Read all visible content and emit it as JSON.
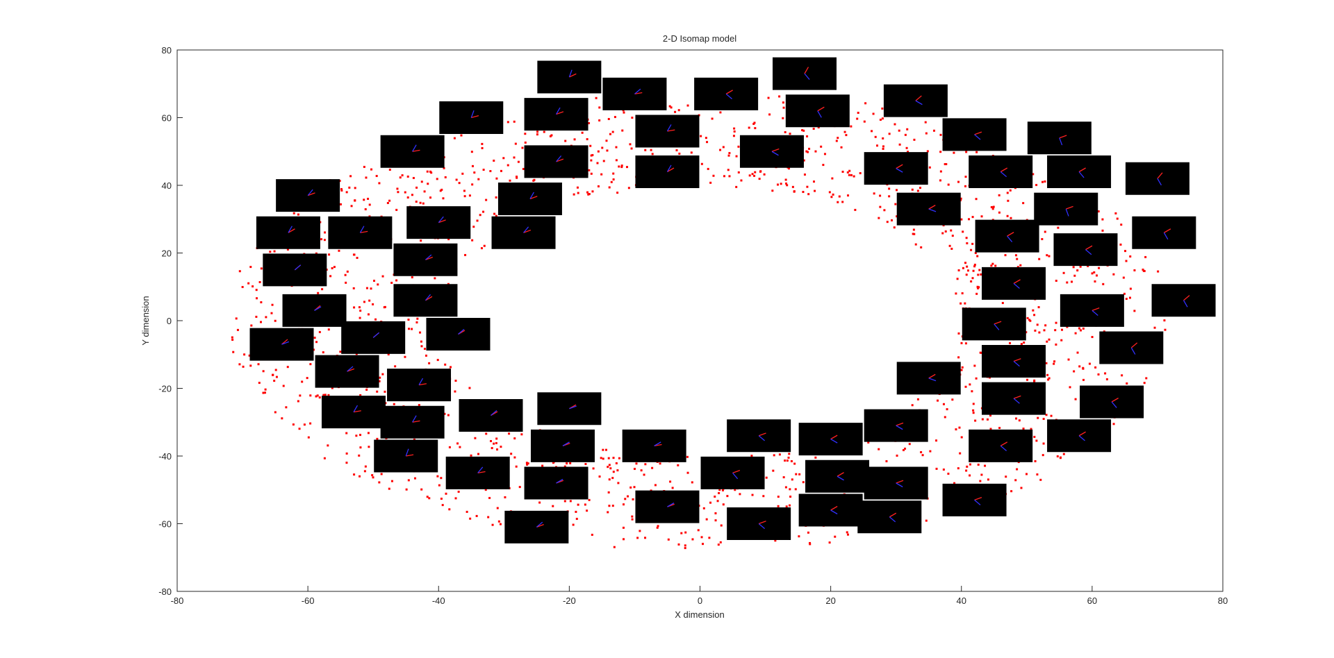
{
  "chart_data": {
    "type": "scatter",
    "title": "2-D Isomap model",
    "xlabel": "X dimension",
    "ylabel": "Y dimension",
    "xlim": [
      -80,
      80
    ],
    "ylim": [
      -80,
      80
    ],
    "xticks": [
      -80,
      -60,
      -40,
      -20,
      0,
      20,
      40,
      60,
      80
    ],
    "yticks": [
      -80,
      -60,
      -40,
      -20,
      0,
      20,
      40,
      60,
      80
    ],
    "grid": false,
    "legend": "none",
    "point_color": "#ff0000",
    "ring": {
      "center": [
        0,
        0
      ],
      "outer_radii": [
        72,
        68
      ],
      "inner_radii": [
        40,
        40
      ],
      "point_count": 1800
    },
    "thumbnails": [
      {
        "x": -20,
        "y": 72,
        "line": "-25 -70",
        "blue": "-100 10 0"
      },
      {
        "x": -10,
        "y": 67,
        "line": "-10 -40",
        "blue": "-40 20 0"
      },
      {
        "x": 4,
        "y": 67,
        "line": "-30 40",
        "blue": "-60 50 0"
      },
      {
        "x": 16,
        "y": 73,
        "line": "-60 50",
        "blue": "-80 0 40"
      },
      {
        "x": 33,
        "y": 65,
        "line": "-40 30",
        "blue": "-20 20 0"
      },
      {
        "x": -35,
        "y": 60,
        "line": "-15 -70",
        "blue": "0 90 60"
      },
      {
        "x": -22,
        "y": 61,
        "line": "-20 -60",
        "blue": "-40 30 0"
      },
      {
        "x": 18,
        "y": 62,
        "line": "-30 60",
        "blue": "-30 40 0"
      },
      {
        "x": -5,
        "y": 56,
        "line": "-10 -60",
        "blue": "-50 40 0"
      },
      {
        "x": 42,
        "y": 55,
        "line": "-20 40",
        "blue": "-40 -20 10"
      },
      {
        "x": 55,
        "y": 54,
        "line": "-20 70",
        "blue": "-90 0 60"
      },
      {
        "x": -44,
        "y": 50,
        "line": "-10 -60",
        "blue": "-40 60 0"
      },
      {
        "x": 11,
        "y": 50,
        "line": "-20 30",
        "blue": "-50 20 0"
      },
      {
        "x": -22,
        "y": 47,
        "line": "-20 -50",
        "blue": "-50 30 0"
      },
      {
        "x": 30,
        "y": 45,
        "line": "-30 30",
        "blue": "-30 30 0"
      },
      {
        "x": -5,
        "y": 44,
        "line": "-30 -60",
        "blue": "-20 60 0"
      },
      {
        "x": 46,
        "y": 44,
        "line": "-30 40",
        "blue": "-40 -20 10"
      },
      {
        "x": 58,
        "y": 44,
        "line": "-30 50",
        "blue": "-60 10 40"
      },
      {
        "x": 70,
        "y": 42,
        "line": "-50 60",
        "blue": "-80 0 60"
      },
      {
        "x": -60,
        "y": 37,
        "line": "-20 -50",
        "blue": "-80 40 0"
      },
      {
        "x": -26,
        "y": 36,
        "line": "-20 -60",
        "blue": "-50 30 0"
      },
      {
        "x": 35,
        "y": 33,
        "line": "-30 20",
        "blue": "-40 40 0"
      },
      {
        "x": 56,
        "y": 33,
        "line": "-20 70",
        "blue": "-70 10 50"
      },
      {
        "x": -40,
        "y": 29,
        "line": "-20 -50",
        "blue": "-60 40 0"
      },
      {
        "x": -63,
        "y": 26,
        "line": "-30 -60",
        "blue": "-70 30 0"
      },
      {
        "x": -52,
        "y": 26,
        "line": "-10 -60",
        "blue": "-60 40 0"
      },
      {
        "x": -27,
        "y": 26,
        "line": "-20 -50",
        "blue": "-50 30 0"
      },
      {
        "x": 47,
        "y": 25,
        "line": "-30 50",
        "blue": "-40 0 30"
      },
      {
        "x": 71,
        "y": 26,
        "line": "-30 60",
        "blue": "-80 0 60"
      },
      {
        "x": 59,
        "y": 21,
        "line": "-30 40",
        "blue": "-40 0 40"
      },
      {
        "x": -42,
        "y": 18,
        "line": "-20 -40",
        "blue": "-40 30 0"
      },
      {
        "x": -62,
        "y": 15,
        "line": "-40 -40",
        "blue": "-80 20 0"
      },
      {
        "x": 48,
        "y": 11,
        "line": "-30 40",
        "blue": "-30 20 0"
      },
      {
        "x": -59,
        "y": 3,
        "line": "-40 -30",
        "blue": "-80 10 0"
      },
      {
        "x": -42,
        "y": 6,
        "line": "-30 -50",
        "blue": "-40 20 0"
      },
      {
        "x": 60,
        "y": 3,
        "line": "-20 40",
        "blue": "-50 0 20"
      },
      {
        "x": 74,
        "y": 6,
        "line": "-40 60",
        "blue": "-80 0 60"
      },
      {
        "x": -50,
        "y": -5,
        "line": "-40 -40",
        "blue": "-50 10 0"
      },
      {
        "x": -37,
        "y": -4,
        "line": "-30 -40",
        "blue": "-40 10 0"
      },
      {
        "x": 45,
        "y": -1,
        "line": "-20 50",
        "blue": "-30 10 0"
      },
      {
        "x": -64,
        "y": -7,
        "line": "-40 -20",
        "blue": "-80 10 0"
      },
      {
        "x": 66,
        "y": -8,
        "line": "-40 60",
        "blue": "-70 0 20"
      },
      {
        "x": 48,
        "y": -12,
        "line": "-20 40",
        "blue": "-30 20 0"
      },
      {
        "x": -54,
        "y": -15,
        "line": "-20 -40",
        "blue": "-50 -40 10"
      },
      {
        "x": 35,
        "y": -17,
        "line": "-30 20",
        "blue": "-40 40 0"
      },
      {
        "x": -43,
        "y": -19,
        "line": "-10 -60",
        "blue": "-40 -40 10"
      },
      {
        "x": 48,
        "y": -23,
        "line": "-20 40",
        "blue": "-20 10 0"
      },
      {
        "x": 63,
        "y": -24,
        "line": "-30 50",
        "blue": "-50 0 10"
      },
      {
        "x": -53,
        "y": -27,
        "line": "-10 -60",
        "blue": "-40 -60 10"
      },
      {
        "x": -20,
        "y": -26,
        "line": "-30 -20",
        "blue": "-10 30 0"
      },
      {
        "x": -32,
        "y": -28,
        "line": "-30 -40",
        "blue": "-40 20 0"
      },
      {
        "x": -44,
        "y": -30,
        "line": "-10 -60",
        "blue": "-30 -40 10"
      },
      {
        "x": 30,
        "y": -31,
        "line": "-20 30",
        "blue": "-40 30 0"
      },
      {
        "x": 9,
        "y": -34,
        "line": "-20 40",
        "blue": "-40 20 0"
      },
      {
        "x": 20,
        "y": -35,
        "line": "-30 30",
        "blue": "-40 30 0"
      },
      {
        "x": 58,
        "y": -34,
        "line": "-30 40",
        "blue": "-40 0 10"
      },
      {
        "x": -21,
        "y": -37,
        "line": "-20 -30",
        "blue": "-30 10 0"
      },
      {
        "x": -7,
        "y": -37,
        "line": "-10 -30",
        "blue": "-30 60 0"
      },
      {
        "x": 46,
        "y": -37,
        "line": "-30 40",
        "blue": "-40 10 0"
      },
      {
        "x": -45,
        "y": -40,
        "line": "-10 -70",
        "blue": "-40 -60 10"
      },
      {
        "x": -34,
        "y": -45,
        "line": "-10 -50",
        "blue": "-30 -50 10"
      },
      {
        "x": 5,
        "y": -45,
        "line": "-20 50",
        "blue": "-30 40 10"
      },
      {
        "x": 21,
        "y": -46,
        "line": "-30 30",
        "blue": "-40 30 0"
      },
      {
        "x": -22,
        "y": -48,
        "line": "-20 -30",
        "blue": "-30 10 0"
      },
      {
        "x": 30,
        "y": -48,
        "line": "-20 30",
        "blue": "-30 40 0"
      },
      {
        "x": 42,
        "y": -53,
        "line": "-20 40",
        "blue": "-40 20 0"
      },
      {
        "x": -5,
        "y": -55,
        "line": "-20 -30",
        "blue": "-40 60 0"
      },
      {
        "x": 20,
        "y": -56,
        "line": "-30 30",
        "blue": "-30 40 0"
      },
      {
        "x": 29,
        "y": -58,
        "line": "-30 40",
        "blue": "-40 30 0"
      },
      {
        "x": -25,
        "y": -61,
        "line": "-20 -40",
        "blue": "-30 -30 10"
      },
      {
        "x": 9,
        "y": -60,
        "line": "-20 40",
        "blue": "-30 50 0"
      }
    ]
  }
}
